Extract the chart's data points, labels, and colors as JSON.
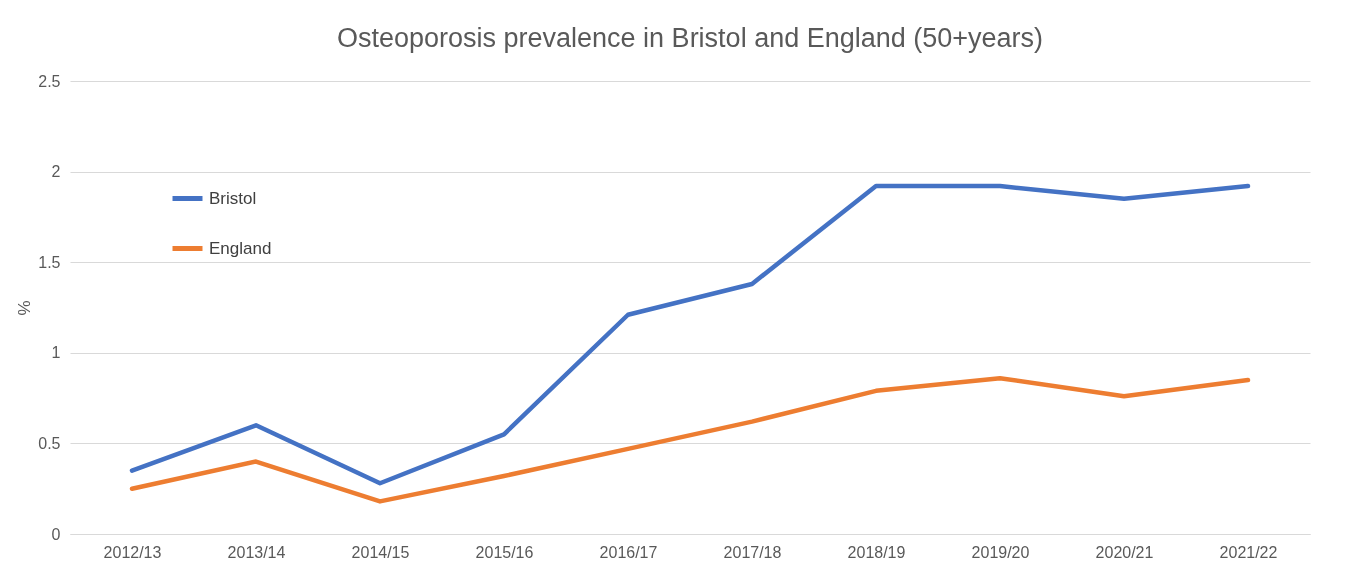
{
  "chart_data": {
    "type": "line",
    "title": "Osteoporosis prevalence in Bristol and England (50+years)",
    "ylabel": "%",
    "categories": [
      "2012/13",
      "2013/14",
      "2014/15",
      "2015/16",
      "2016/17",
      "2017/18",
      "2018/19",
      "2019/20",
      "2020/21",
      "2021/22"
    ],
    "series": [
      {
        "name": "Bristol",
        "color": "#4472c4",
        "values": [
          0.35,
          0.6,
          0.28,
          0.55,
          1.21,
          1.38,
          1.92,
          1.92,
          1.85,
          1.92
        ]
      },
      {
        "name": "England",
        "color": "#ed7d31",
        "values": [
          0.25,
          0.4,
          0.18,
          0.32,
          0.47,
          0.62,
          0.79,
          0.86,
          0.76,
          0.85
        ]
      }
    ],
    "ylim": [
      0,
      2.5
    ],
    "yticks": [
      0,
      0.5,
      1,
      1.5,
      2,
      2.5
    ],
    "grid": "y",
    "legend": "top left",
    "marker": "none",
    "line_style": "solid"
  }
}
